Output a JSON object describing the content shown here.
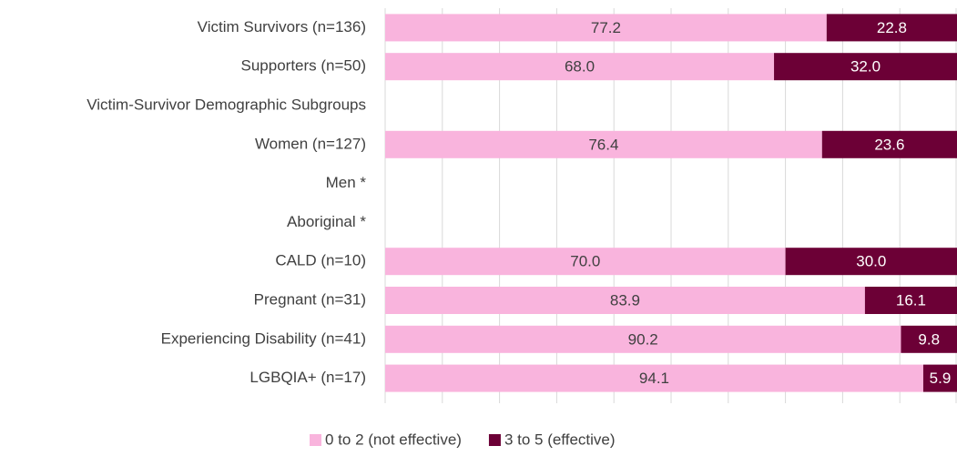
{
  "chart_data": {
    "type": "stacked_barh",
    "categories": [
      "Victim Survivors (n=136)",
      "Supporters (n=50)",
      "Victim-Survivor Demographic Subgroups",
      "Women (n=127)",
      "Men *",
      "Aboriginal *",
      "CALD (n=10)",
      "Pregnant (n=31)",
      "Experiencing Disability (n=41)",
      "LGBQIA+ (n=17)"
    ],
    "series": [
      {
        "name": "0 to 2 (not effective)",
        "color": "#f9b4dd",
        "values": [
          77.2,
          68,
          null,
          76.4,
          null,
          null,
          70,
          83.9,
          90.2,
          94.1
        ],
        "value_labels": [
          "77.2",
          "68.0",
          null,
          "76.4",
          null,
          null,
          "70.0",
          "83.9",
          "90.2",
          "94.1"
        ]
      },
      {
        "name": "3 to 5 (effective)",
        "color": "#6c0036",
        "values": [
          22.8,
          32,
          null,
          23.6,
          null,
          null,
          30,
          16.1,
          9.8,
          5.9
        ],
        "value_labels": [
          "22.8",
          "32.0",
          null,
          "23.6",
          null,
          null,
          "30.0",
          "16.1",
          "9.8",
          "5.9"
        ]
      }
    ],
    "xlim": [
      0,
      100
    ],
    "xticks": [
      0,
      10,
      20,
      30,
      40,
      50,
      60,
      70,
      80,
      90,
      100
    ],
    "tick_labels": false,
    "grid": true,
    "legend": "bottom"
  }
}
